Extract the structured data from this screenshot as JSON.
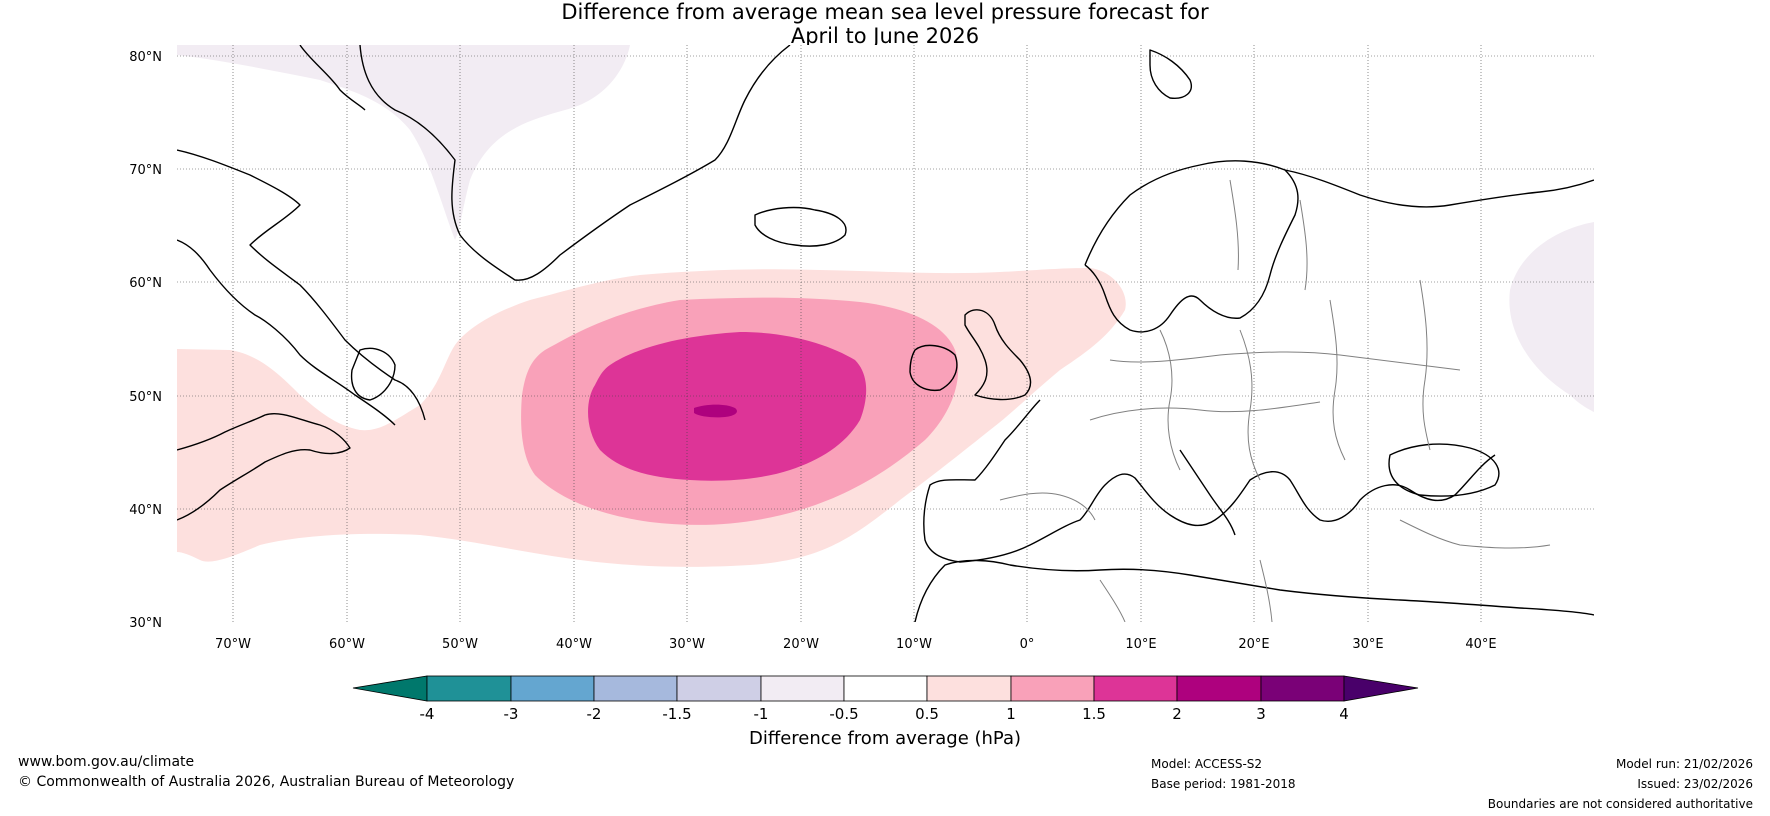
{
  "title": {
    "line1": "Difference from average mean sea level pressure forecast for",
    "line2": "April to June 2026"
  },
  "map": {
    "lat_labels": [
      "80°N",
      "70°N",
      "60°N",
      "50°N",
      "40°N",
      "30°N"
    ],
    "lon_labels": [
      "70°W",
      "60°W",
      "50°W",
      "40°W",
      "30°W",
      "20°W",
      "10°W",
      "0°",
      "10°E",
      "20°E",
      "30°E",
      "40°E"
    ],
    "colors": {
      "pos_0_5_1": "#fde0de",
      "pos_1_1_5": "#f9a1b9",
      "pos_1_5_2": "#dd3497",
      "pos_2_3": "#ae017e",
      "neg_0_5_1": "#f2ecf3",
      "land_outline": "#000000",
      "border": "#808080"
    }
  },
  "colorbar": {
    "tick_labels": [
      "-4",
      "-3",
      "-2",
      "-1.5",
      "-1",
      "-0.5",
      "0.5",
      "1",
      "1.5",
      "2",
      "3",
      "4"
    ],
    "colors": [
      "#00786c",
      "#1f9197",
      "#64a6d0",
      "#a6b9dd",
      "#cfcfe6",
      "#f2ecf3",
      "#ffffff",
      "#fde0de",
      "#f9a1b9",
      "#dd3497",
      "#ae017e",
      "#7a0177",
      "#49006a"
    ],
    "title": "Difference from average (hPa)"
  },
  "footer": {
    "website": "www.bom.gov.au/climate",
    "copyright": "© Commonwealth of Australia 2026, Australian Bureau of Meteorology",
    "model": "Model: ACCESS-S2",
    "base_period": "Base period: 1981-2018",
    "model_run": "Model run: 21/02/2026",
    "issued": "Issued: 23/02/2026",
    "disclaimer": "Boundaries are not considered authoritative"
  }
}
